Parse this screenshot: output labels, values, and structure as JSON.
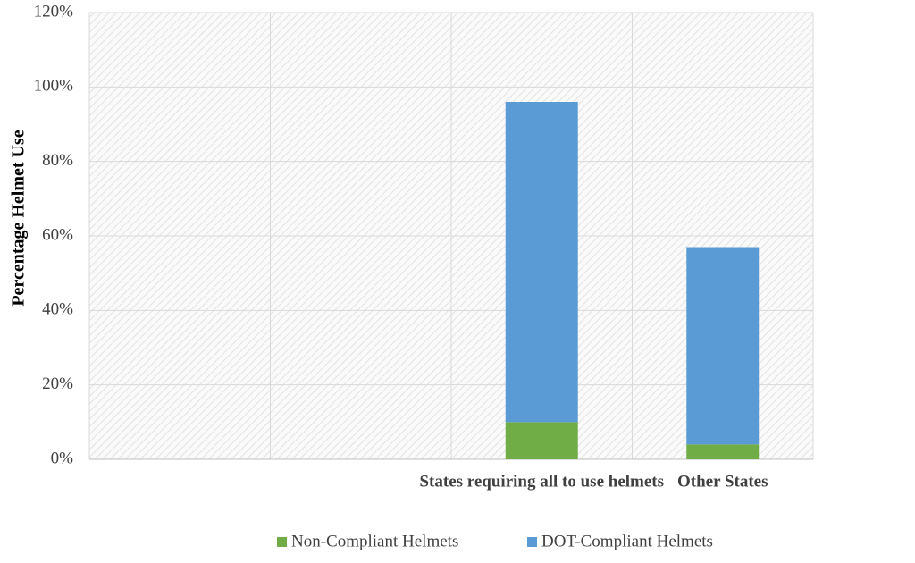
{
  "chart_data": {
    "type": "stacked_bar",
    "y_label": "Percentage Helmet Use",
    "categories": [
      null,
      null,
      "States requiring all to use helmets",
      "Other States"
    ],
    "series": [
      {
        "name": "Non-Compliant Helmets",
        "color": "#70ad47",
        "values": [
          null,
          null,
          10,
          4
        ]
      },
      {
        "name": "DOT-Compliant Helmets",
        "color": "#5b9bd5",
        "values": [
          null,
          null,
          86,
          53
        ]
      }
    ],
    "ylim": [
      0,
      120
    ],
    "yticks": [
      {
        "value": 0,
        "label": "0%"
      },
      {
        "value": 20,
        "label": "20%"
      },
      {
        "value": 40,
        "label": "40%"
      },
      {
        "value": 60,
        "label": "60%"
      },
      {
        "value": 80,
        "label": "80%"
      },
      {
        "value": 100,
        "label": "100%"
      },
      {
        "value": 120,
        "label": "120%"
      }
    ],
    "grid": true,
    "legend": "bottom"
  }
}
